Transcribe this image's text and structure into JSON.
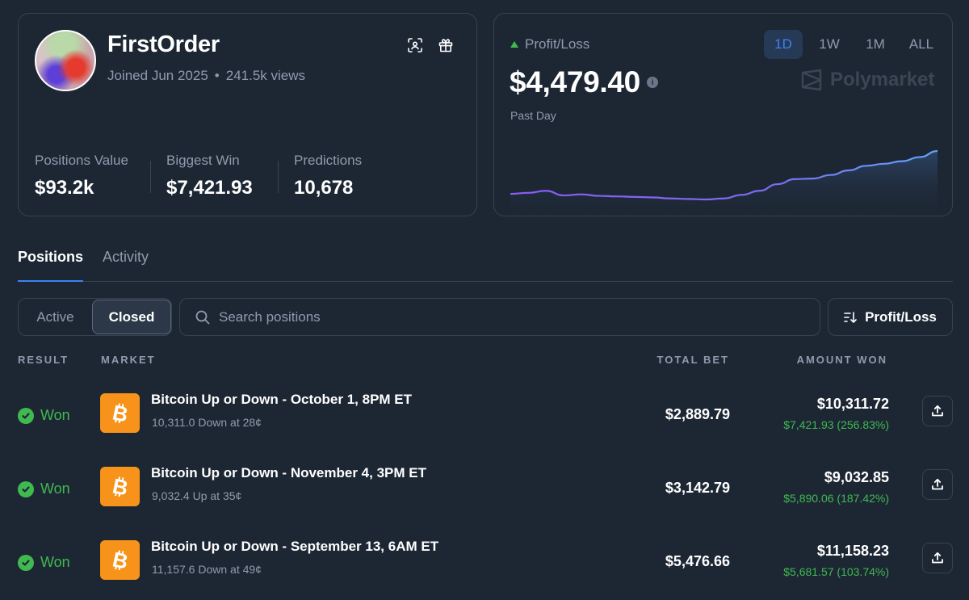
{
  "profile": {
    "username": "FirstOrder",
    "joined": "Joined Jun 2025",
    "separator": "•",
    "views": "241.5k views",
    "stats": [
      {
        "label": "Positions Value",
        "value": "$93.2k"
      },
      {
        "label": "Biggest Win",
        "value": "$7,421.93"
      },
      {
        "label": "Predictions",
        "value": "10,678"
      }
    ]
  },
  "pnl": {
    "label": "Profit/Loss",
    "value": "$4,479.40",
    "period": "Past Day",
    "ranges": [
      "1D",
      "1W",
      "1M",
      "ALL"
    ],
    "active_range": "1D",
    "brand": "Polymarket",
    "chart_data": {
      "type": "area",
      "series": [
        {
          "values": [
            0.36,
            0.38,
            0.42,
            0.33,
            0.35,
            0.32,
            0.31,
            0.3,
            0.29,
            0.27,
            0.26,
            0.25,
            0.27,
            0.34,
            0.42,
            0.55,
            0.65,
            0.66,
            0.73,
            0.82,
            0.91,
            0.95,
            1.0,
            1.08,
            1.2
          ]
        }
      ],
      "colors": {
        "start": "#8b5cf6",
        "end": "#60a5fa"
      }
    }
  },
  "tabs": {
    "positions": "Positions",
    "activity": "Activity"
  },
  "filters": {
    "active": "Active",
    "closed": "Closed",
    "search_placeholder": "Search positions",
    "sort": "Profit/Loss"
  },
  "table": {
    "headers": {
      "result": "RESULT",
      "market": "MARKET",
      "total_bet": "TOTAL BET",
      "amount_won": "AMOUNT WON"
    },
    "rows": [
      {
        "result": "Won",
        "title": "Bitcoin Up or Down - October 1, 8PM ET",
        "sub": "10,311.0 Down at 28¢",
        "total_bet": "$2,889.79",
        "amount": "$10,311.72",
        "pnl": "$7,421.93 (256.83%)"
      },
      {
        "result": "Won",
        "title": "Bitcoin Up or Down - November 4, 3PM ET",
        "sub": "9,032.4 Up at 35¢",
        "total_bet": "$3,142.79",
        "amount": "$9,032.85",
        "pnl": "$5,890.06 (187.42%)"
      },
      {
        "result": "Won",
        "title": "Bitcoin Up or Down - September 13, 6AM ET",
        "sub": "11,157.6 Down at 49¢",
        "total_bet": "$5,476.66",
        "amount": "$11,158.23",
        "pnl": "$5,681.57 (103.74%)"
      }
    ]
  },
  "colors": {
    "accent": "#3b82f6",
    "positive": "#3fb950",
    "bitcoin": "#f7931a",
    "background": "#1d2734"
  }
}
